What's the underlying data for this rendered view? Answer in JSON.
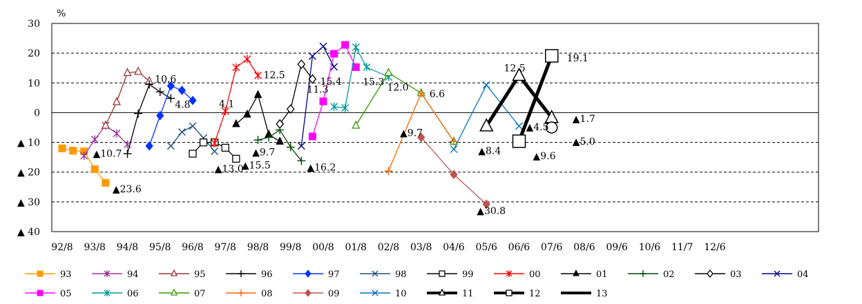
{
  "chart_data": {
    "type": "line",
    "title": "",
    "y_unit": "%",
    "ylim": [
      -40,
      30
    ],
    "y_ticks": [
      {
        "value": 30,
        "label": "30"
      },
      {
        "value": 20,
        "label": "20"
      },
      {
        "value": 10,
        "label": "10"
      },
      {
        "value": 0,
        "label": "0"
      },
      {
        "value": -10,
        "label": "▲ 10"
      },
      {
        "value": -20,
        "label": "▲ 20"
      },
      {
        "value": -30,
        "label": "▲ 30"
      },
      {
        "value": -40,
        "label": "▲ 40"
      }
    ],
    "grid": "dashed horizontal",
    "categories": [
      "92/8",
      "93/8",
      "94/8",
      "95/8",
      "96/8",
      "97/8",
      "98/8",
      "99/8",
      "00/8",
      "01/8",
      "02/8",
      "03/8",
      "04/6",
      "05/6",
      "06/6",
      "07/6",
      "08/6",
      "09/6",
      "10/6",
      "11/7",
      "12/6"
    ],
    "series": [
      {
        "name": "93",
        "color": "#FF9900",
        "marker": "square-filled",
        "width": 1.3,
        "points": [
          [
            0,
            -12
          ],
          [
            0.33,
            -12.8
          ],
          [
            0.67,
            -13
          ],
          [
            1,
            -19
          ],
          [
            1.33,
            -23.6
          ]
        ]
      },
      {
        "name": "94",
        "color": "#993399",
        "marker": "star",
        "width": 1.3,
        "points": [
          [
            0.67,
            -14.5
          ],
          [
            1,
            -9
          ],
          [
            1.33,
            -4.3
          ],
          [
            1.67,
            -7
          ],
          [
            2,
            -10.7
          ]
        ]
      },
      {
        "name": "95",
        "color": "#993333",
        "marker": "triangle-open",
        "width": 1.3,
        "points": [
          [
            1.33,
            -4.3
          ],
          [
            1.67,
            3.6
          ],
          [
            2,
            13.4
          ],
          [
            2.33,
            13.8
          ],
          [
            2.67,
            10.6
          ]
        ]
      },
      {
        "name": "96",
        "color": "#000000",
        "marker": "plus",
        "width": 1.3,
        "points": [
          [
            2,
            -13.8
          ],
          [
            2.33,
            -0.3
          ],
          [
            2.67,
            9.5
          ],
          [
            3,
            7
          ],
          [
            3.33,
            4.8
          ]
        ]
      },
      {
        "name": "97",
        "color": "#0033FF",
        "marker": "diamond-filled",
        "width": 1.3,
        "points": [
          [
            2.67,
            -11.2
          ],
          [
            3,
            -1
          ],
          [
            3.33,
            9
          ],
          [
            3.67,
            7.5
          ],
          [
            4,
            4.1
          ]
        ]
      },
      {
        "name": "98",
        "color": "#1F4E79",
        "marker": "x",
        "width": 1.3,
        "points": [
          [
            3.33,
            -11.2
          ],
          [
            3.67,
            -6.5
          ],
          [
            4,
            -4.5
          ],
          [
            4.33,
            -8.5
          ],
          [
            4.67,
            -13
          ]
        ]
      },
      {
        "name": "99",
        "color": "#000000",
        "marker": "square-open",
        "width": 1.3,
        "points": [
          [
            4,
            -13.8
          ],
          [
            4.33,
            -10
          ],
          [
            4.67,
            -10
          ],
          [
            5,
            -11.8
          ],
          [
            5.33,
            -15.5
          ]
        ]
      },
      {
        "name": "00",
        "color": "#FF0000",
        "marker": "star",
        "width": 1.3,
        "points": [
          [
            4.67,
            -10.2
          ],
          [
            5,
            0.5
          ],
          [
            5.33,
            15.2
          ],
          [
            5.67,
            18
          ],
          [
            6,
            12.5
          ]
        ]
      },
      {
        "name": "01",
        "color": "#000000",
        "marker": "triangle-filled",
        "width": 1.3,
        "points": [
          [
            5.33,
            -3.8
          ],
          [
            5.67,
            -0.6
          ],
          [
            6,
            6
          ],
          [
            6.33,
            -7.3
          ],
          [
            6.67,
            -9.7
          ]
        ]
      },
      {
        "name": "02",
        "color": "#004400",
        "marker": "plus",
        "width": 1.3,
        "points": [
          [
            6,
            -9.2
          ],
          [
            6.33,
            -8.3
          ],
          [
            6.67,
            -5.8
          ],
          [
            7,
            -11.6
          ],
          [
            7.33,
            -16.2
          ]
        ]
      },
      {
        "name": "03",
        "color": "#000000",
        "marker": "diamond-open",
        "width": 1.3,
        "points": [
          [
            6.67,
            -3.8
          ],
          [
            7,
            1.2
          ],
          [
            7.33,
            16.3
          ],
          [
            7.67,
            11.3
          ]
        ]
      },
      {
        "name": "04",
        "color": "#000080",
        "marker": "x",
        "width": 1.3,
        "points": [
          [
            7.33,
            -11.2
          ],
          [
            7.67,
            19
          ],
          [
            8,
            22.3
          ],
          [
            8.33,
            15.4
          ]
        ]
      },
      {
        "name": "05",
        "color": "#FF00FF",
        "marker": "square-filled",
        "width": 1.3,
        "points": [
          [
            7.67,
            -8
          ],
          [
            8,
            3.8
          ],
          [
            8.33,
            19.8
          ],
          [
            8.67,
            22.8
          ],
          [
            9,
            15.3
          ]
        ]
      },
      {
        "name": "06",
        "color": "#009999",
        "marker": "star",
        "width": 1.3,
        "points": [
          [
            8.33,
            2
          ],
          [
            8.67,
            1.6
          ],
          [
            9,
            22
          ],
          [
            9.33,
            15.3
          ],
          [
            10,
            12
          ]
        ]
      },
      {
        "name": "07",
        "color": "#339900",
        "marker": "triangle-open",
        "width": 1.3,
        "points": [
          [
            9,
            -4.3
          ],
          [
            10,
            13.4
          ],
          [
            11,
            6.6
          ],
          [
            12,
            -9.7
          ]
        ]
      },
      {
        "name": "08",
        "color": "#FF6600",
        "marker": "plus",
        "width": 1.3,
        "points": [
          [
            10,
            -19.6
          ],
          [
            11,
            6.6
          ],
          [
            12,
            -9.7
          ]
        ]
      },
      {
        "name": "09",
        "color": "#C0504D",
        "marker": "diamond-filled",
        "width": 1.3,
        "points": [
          [
            11,
            -8.3
          ],
          [
            12,
            -20.8
          ],
          [
            13,
            -30.8
          ]
        ]
      },
      {
        "name": "10",
        "color": "#0070C0",
        "marker": "x",
        "width": 1.3,
        "points": [
          [
            12,
            -12.3
          ],
          [
            13,
            9.3
          ],
          [
            14,
            -4.5
          ]
        ]
      },
      {
        "name": "11",
        "color": "#000000",
        "marker": "triangle-open-large",
        "width": 5,
        "points": [
          [
            13,
            -4.5
          ],
          [
            14,
            12.5
          ],
          [
            15,
            -1.7
          ]
        ]
      },
      {
        "name": "12",
        "color": "#000000",
        "marker": "square-open-large",
        "width": 5,
        "points": [
          [
            14,
            -9.6
          ],
          [
            15,
            19.1
          ]
        ]
      },
      {
        "name": "13",
        "color": "#000000",
        "marker": "circle-open-large",
        "width": 5,
        "points": [
          [
            15,
            -5
          ]
        ]
      }
    ],
    "annotations": [
      {
        "text": "10.6",
        "x": 2.67,
        "y": 10.6
      },
      {
        "text": "4.8",
        "x": 3.33,
        "y": 4.8
      },
      {
        "text": "4.1",
        "x": 4,
        "y": 4.1
      },
      {
        "text": "▲10.7",
        "x": 2,
        "y": -10.7
      },
      {
        "text": "▲23.6",
        "x": 1.33,
        "y": -23.6
      },
      {
        "text": "▲13.0",
        "x": 4.67,
        "y": -13
      },
      {
        "text": "▲15.5",
        "x": 5.33,
        "y": -15.5
      },
      {
        "text": "12.5",
        "x": 6,
        "y": 12.5
      },
      {
        "text": "▲9.7",
        "x": 6.67,
        "y": -9.7
      },
      {
        "text": "▲16.2",
        "x": 7.33,
        "y": -16.2
      },
      {
        "text": "11.3",
        "x": 7.67,
        "y": 11.3
      },
      {
        "text": "15.4",
        "x": 8.33,
        "y": 15.4
      },
      {
        "text": "15.3",
        "x": 9,
        "y": 15.3
      },
      {
        "text": "12.0",
        "x": 10,
        "y": 12
      },
      {
        "text": "6.6",
        "x": 11,
        "y": 6.6
      },
      {
        "text": "▲9.7",
        "x": 12,
        "y": -9.7
      },
      {
        "text": "▲30.8",
        "x": 13,
        "y": -30.8
      },
      {
        "text": "▲8.4",
        "x": 13,
        "y": -8.4
      },
      {
        "text": "▲4.5",
        "x": 14,
        "y": -4.5
      },
      {
        "text": "12.5",
        "x": 14,
        "y": 12.5
      },
      {
        "text": "▲9.6",
        "x": 14,
        "y": -9.6
      },
      {
        "text": "19.1",
        "x": 15,
        "y": 19.1
      },
      {
        "text": "▲1.7",
        "x": 15,
        "y": -1.7
      },
      {
        "text": "▲5.0",
        "x": 15,
        "y": -5
      }
    ],
    "legend_position": "bottom"
  }
}
